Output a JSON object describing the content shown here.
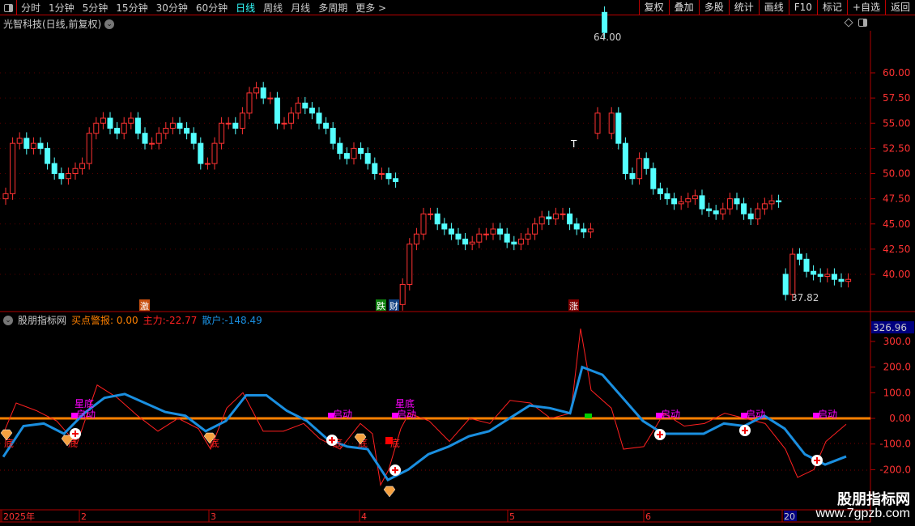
{
  "toolbar": {
    "periods": [
      "分时",
      "1分钟",
      "5分钟",
      "15分钟",
      "30分钟",
      "60分钟",
      "日线",
      "周线",
      "月线",
      "多周期",
      "更多 >"
    ],
    "active": "日线",
    "actions": [
      "复权",
      "叠加",
      "多股",
      "统计",
      "画线",
      "F10",
      "标记",
      "+自选",
      "返回"
    ]
  },
  "stock_title": "光智科技(日线,前复权)",
  "indicator": {
    "name": "股朋指标网",
    "alert_label": "买点警报:",
    "alert_value": "0.00",
    "main_label": "主力:",
    "main_value": "-22.77",
    "retail_label": "散户:",
    "retail_value": "-148.49",
    "current_axis_value": "326.96"
  },
  "colors": {
    "up": "#ff3232",
    "down": "#54ffff",
    "main_line": "#ff2020",
    "retail_line": "#1a8fe0",
    "zero_line": "#ff8000",
    "axis": "#b00000"
  },
  "event_tags": [
    {
      "text": "激",
      "color": "#c85010"
    },
    {
      "text": "跌",
      "color": "#108010"
    },
    {
      "text": "财",
      "color": "#104080"
    },
    {
      "text": "涨",
      "color": "#800000"
    }
  ],
  "price_annotations": {
    "high": "64.00",
    "low": "37.82",
    "t_mark": "T"
  },
  "signal_labels": {
    "start": "启动",
    "bottom": "底",
    "star_bottom": "星底"
  },
  "date_axis": [
    "2025年",
    "2",
    "3",
    "4",
    "5",
    "6",
    "20"
  ],
  "watermark": {
    "name": "股朋指标网",
    "url": "www.7gpzb.com"
  },
  "chart_data": [
    {
      "type": "candlestick",
      "yaxis_ticks": [
        "60.00",
        "57.50",
        "55.00",
        "52.50",
        "50.00",
        "47.50",
        "45.00",
        "42.50",
        "40.00"
      ],
      "ylim": [
        37,
        65
      ],
      "closes": [
        48,
        53,
        53.5,
        52.5,
        53,
        52.5,
        51,
        50,
        49.5,
        50,
        50.5,
        51,
        54,
        55,
        55.5,
        54.5,
        54,
        55,
        55.5,
        54,
        53,
        53,
        54,
        54.5,
        55,
        54.5,
        54,
        53,
        51,
        51,
        53,
        55,
        55,
        54.5,
        56,
        58,
        58.5,
        57.5,
        57.5,
        55,
        55,
        56,
        57,
        56.5,
        56,
        55,
        54.5,
        53,
        52,
        51.5,
        52.5,
        52,
        51,
        50,
        50,
        49.5,
        49.2,
        39,
        43,
        44,
        46,
        46,
        45,
        44.5,
        44,
        43.5,
        43,
        43.2,
        44,
        44,
        44.5,
        44,
        43.2,
        43,
        43.5,
        44,
        45,
        45.7,
        45.5,
        46,
        46,
        45,
        44.5,
        44.2,
        44.5,
        56,
        64,
        56,
        53,
        50,
        49.5,
        51.5,
        50.5,
        48.5,
        48,
        47.5,
        47,
        47.2,
        47.5,
        47.8,
        46.5,
        46.3,
        46,
        46.5,
        47.5,
        47,
        46,
        45.5,
        46.5,
        47,
        47.3,
        47.2,
        38,
        42,
        41.5,
        40.3,
        40,
        39.8,
        40,
        39.5,
        39.3,
        39.5
      ]
    },
    {
      "type": "line",
      "yaxis_ticks": [
        "300.0",
        "200.0",
        "100.0",
        "0.00",
        "-100.0",
        "-200.0"
      ],
      "ylim": [
        -280,
        340
      ],
      "series": [
        {
          "name": "主力",
          "points": [
            [
              4,
              -60
            ],
            [
              20,
              60
            ],
            [
              45,
              30
            ],
            [
              70,
              -10
            ],
            [
              95,
              -100
            ],
            [
              120,
              130
            ],
            [
              145,
              80
            ],
            [
              170,
              10
            ],
            [
              195,
              -50
            ],
            [
              220,
              0
            ],
            [
              245,
              -40
            ],
            [
              260,
              -120
            ],
            [
              280,
              40
            ],
            [
              300,
              100
            ],
            [
              325,
              -50
            ],
            [
              350,
              -50
            ],
            [
              375,
              -20
            ],
            [
              395,
              -80
            ],
            [
              420,
              -120
            ],
            [
              445,
              -20
            ],
            [
              460,
              -60
            ],
            [
              470,
              -260
            ],
            [
              480,
              -200
            ],
            [
              495,
              -40
            ],
            [
              505,
              20
            ],
            [
              530,
              -10
            ],
            [
              555,
              -90
            ],
            [
              580,
              0
            ],
            [
              605,
              -20
            ],
            [
              630,
              70
            ],
            [
              655,
              60
            ],
            [
              680,
              0
            ],
            [
              705,
              20
            ],
            [
              717,
              350
            ],
            [
              730,
              110
            ],
            [
              755,
              40
            ],
            [
              770,
              -120
            ],
            [
              795,
              -110
            ],
            [
              820,
              20
            ],
            [
              845,
              -30
            ],
            [
              870,
              -20
            ],
            [
              895,
              20
            ],
            [
              920,
              0
            ],
            [
              945,
              -20
            ],
            [
              970,
              -120
            ],
            [
              985,
              -230
            ],
            [
              1005,
              -200
            ],
            [
              1020,
              -90
            ],
            [
              1045,
              -22.77
            ]
          ]
        },
        {
          "name": "散户",
          "points": [
            [
              4,
              -150
            ],
            [
              29,
              -30
            ],
            [
              54,
              -20
            ],
            [
              79,
              -60
            ],
            [
              104,
              20
            ],
            [
              129,
              80
            ],
            [
              154,
              95
            ],
            [
              179,
              60
            ],
            [
              204,
              25
            ],
            [
              229,
              10
            ],
            [
              254,
              -50
            ],
            [
              279,
              -10
            ],
            [
              304,
              90
            ],
            [
              329,
              90
            ],
            [
              354,
              30
            ],
            [
              379,
              -10
            ],
            [
              404,
              -80
            ],
            [
              429,
              -110
            ],
            [
              454,
              -120
            ],
            [
              479,
              -240
            ],
            [
              504,
              -200
            ],
            [
              529,
              -140
            ],
            [
              554,
              -110
            ],
            [
              579,
              -70
            ],
            [
              604,
              -50
            ],
            [
              629,
              0
            ],
            [
              654,
              50
            ],
            [
              679,
              40
            ],
            [
              704,
              20
            ],
            [
              719,
              200
            ],
            [
              744,
              170
            ],
            [
              769,
              80
            ],
            [
              794,
              -10
            ],
            [
              819,
              -60
            ],
            [
              844,
              -60
            ],
            [
              869,
              -60
            ],
            [
              894,
              -20
            ],
            [
              919,
              -30
            ],
            [
              944,
              10
            ],
            [
              969,
              -40
            ],
            [
              994,
              -140
            ],
            [
              1019,
              -180
            ],
            [
              1045,
              -148.49
            ]
          ]
        }
      ]
    }
  ]
}
